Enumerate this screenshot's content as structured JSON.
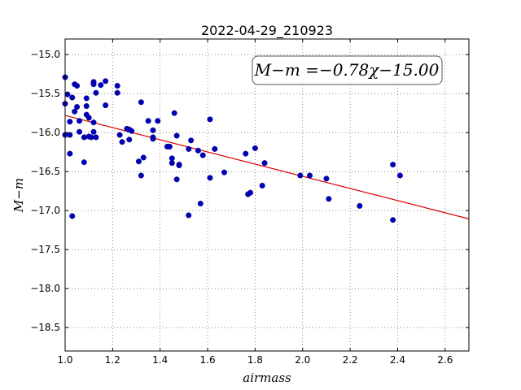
{
  "chart_data": {
    "type": "scatter",
    "title": "2022-04-29_210923",
    "xlabel": "airmass",
    "ylabel": "M−m",
    "xlim": [
      1.0,
      2.7
    ],
    "ylim": [
      -18.8,
      -14.8
    ],
    "xticks": [
      1.0,
      1.2,
      1.4,
      1.6,
      1.8,
      2.0,
      2.2,
      2.4,
      2.6
    ],
    "xtick_labels": [
      "1.0",
      "1.2",
      "1.4",
      "1.6",
      "1.8",
      "2.0",
      "2.2",
      "2.4",
      "2.6"
    ],
    "yticks": [
      -15.0,
      -15.5,
      -16.0,
      -16.5,
      -17.0,
      -17.5,
      -18.0,
      -18.5
    ],
    "ytick_labels": [
      "−15.0",
      "−15.5",
      "−16.0",
      "−16.5",
      "−17.0",
      "−17.5",
      "−18.0",
      "−18.5"
    ],
    "grid": true,
    "annotation": "M−m =−0.78χ−15.00",
    "annotation_position": "top-right",
    "fit": {
      "slope": -0.78,
      "intercept": -15.0,
      "color": "#dd0000"
    },
    "point_color": "#0000bb",
    "points": [
      [
        1.0,
        -15.29
      ],
      [
        1.0,
        -15.63
      ],
      [
        1.0,
        -16.03
      ],
      [
        1.01,
        -15.51
      ],
      [
        1.02,
        -15.86
      ],
      [
        1.02,
        -16.03
      ],
      [
        1.02,
        -16.27
      ],
      [
        1.03,
        -15.55
      ],
      [
        1.03,
        -17.07
      ],
      [
        1.04,
        -15.38
      ],
      [
        1.04,
        -15.73
      ],
      [
        1.05,
        -15.4
      ],
      [
        1.05,
        -15.67
      ],
      [
        1.06,
        -15.85
      ],
      [
        1.06,
        -15.99
      ],
      [
        1.08,
        -16.06
      ],
      [
        1.08,
        -16.38
      ],
      [
        1.09,
        -15.56
      ],
      [
        1.09,
        -15.66
      ],
      [
        1.09,
        -15.77
      ],
      [
        1.1,
        -15.81
      ],
      [
        1.1,
        -16.05
      ],
      [
        1.11,
        -16.06
      ],
      [
        1.12,
        -15.35
      ],
      [
        1.12,
        -15.38
      ],
      [
        1.12,
        -15.87
      ],
      [
        1.12,
        -15.99
      ],
      [
        1.13,
        -15.49
      ],
      [
        1.13,
        -16.06
      ],
      [
        1.15,
        -15.39
      ],
      [
        1.17,
        -15.34
      ],
      [
        1.17,
        -15.65
      ],
      [
        1.22,
        -15.4
      ],
      [
        1.22,
        -15.49
      ],
      [
        1.23,
        -16.03
      ],
      [
        1.24,
        -16.12
      ],
      [
        1.26,
        -15.95
      ],
      [
        1.27,
        -15.96
      ],
      [
        1.27,
        -16.09
      ],
      [
        1.28,
        -15.98
      ],
      [
        1.31,
        -16.37
      ],
      [
        1.32,
        -15.61
      ],
      [
        1.32,
        -16.55
      ],
      [
        1.33,
        -16.32
      ],
      [
        1.35,
        -15.85
      ],
      [
        1.37,
        -15.97
      ],
      [
        1.37,
        -16.06
      ],
      [
        1.37,
        -16.08
      ],
      [
        1.39,
        -15.85
      ],
      [
        1.43,
        -16.18
      ],
      [
        1.44,
        -16.18
      ],
      [
        1.45,
        -16.33
      ],
      [
        1.45,
        -16.39
      ],
      [
        1.46,
        -15.75
      ],
      [
        1.47,
        -16.04
      ],
      [
        1.47,
        -16.6
      ],
      [
        1.48,
        -16.41
      ],
      [
        1.48,
        -16.42
      ],
      [
        1.52,
        -16.21
      ],
      [
        1.52,
        -17.06
      ],
      [
        1.53,
        -16.1
      ],
      [
        1.56,
        -16.23
      ],
      [
        1.57,
        -16.91
      ],
      [
        1.58,
        -16.29
      ],
      [
        1.61,
        -15.83
      ],
      [
        1.61,
        -16.58
      ],
      [
        1.63,
        -16.21
      ],
      [
        1.67,
        -16.51
      ],
      [
        1.76,
        -16.27
      ],
      [
        1.77,
        -16.79
      ],
      [
        1.78,
        -16.77
      ],
      [
        1.8,
        -16.2
      ],
      [
        1.83,
        -16.68
      ],
      [
        1.84,
        -16.39
      ],
      [
        1.99,
        -16.55
      ],
      [
        2.03,
        -16.55
      ],
      [
        2.1,
        -16.59
      ],
      [
        2.11,
        -16.85
      ],
      [
        2.24,
        -16.94
      ],
      [
        2.38,
        -16.41
      ],
      [
        2.38,
        -17.12
      ],
      [
        2.41,
        -16.55
      ]
    ]
  }
}
